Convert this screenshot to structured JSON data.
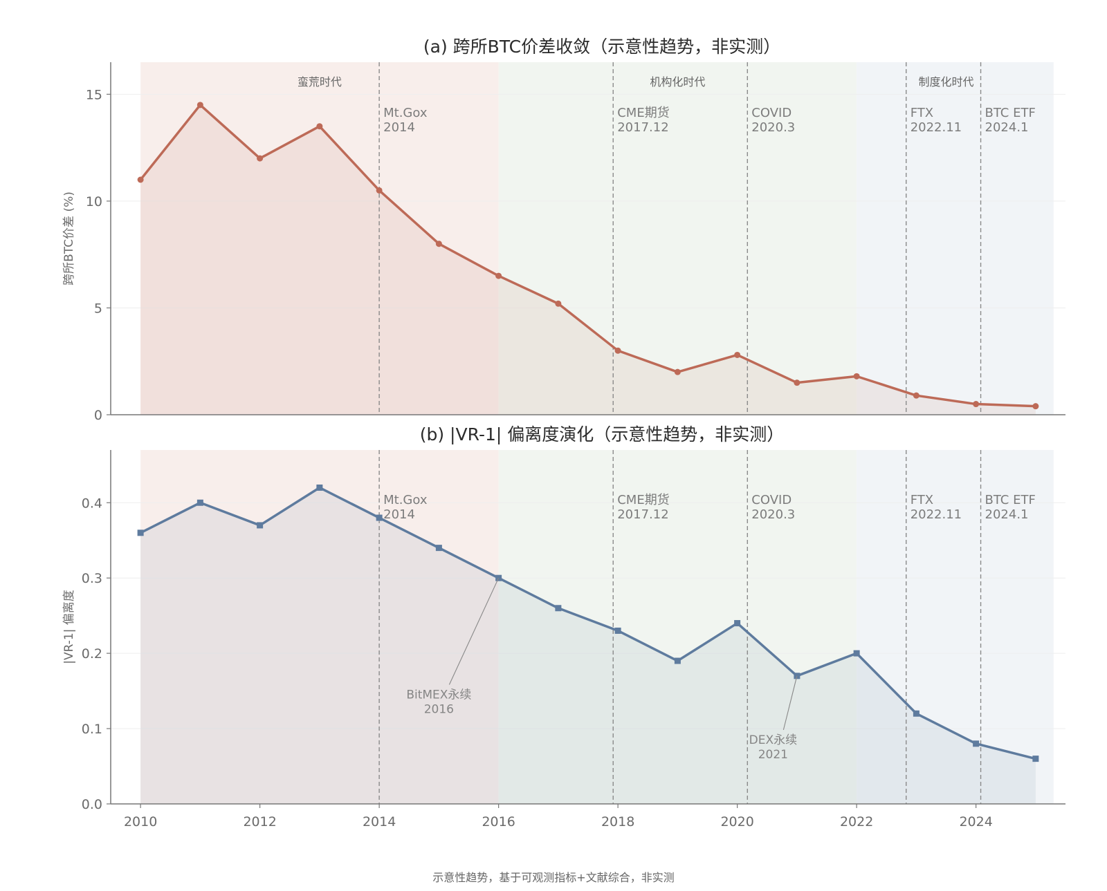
{
  "footnote": "示意性趋势，基于可观测指标+文献综合，非实测",
  "colors": {
    "spread_line": "#bd6a57",
    "vr_line": "#5e7b9e",
    "era1_band": "#f8eeeb",
    "era2_band": "#f1f5f0",
    "era3_band": "#f1f4f7",
    "axis": "#777777",
    "grid": "#eeeeee",
    "event_line": "#8a8a8a"
  },
  "chart_data": [
    {
      "type": "line",
      "title": "(a) 跨所BTC价差收敛（示意性趋势，非实测）",
      "ylabel": "跨所BTC价差 (%)",
      "xlabel": "",
      "xlim": [
        2009.5,
        2025.5
      ],
      "ylim": [
        0,
        16.5
      ],
      "yticks": [
        0,
        5,
        10,
        15
      ],
      "ytick_labels": [
        "0",
        "5",
        "10",
        "15"
      ],
      "grid": true,
      "x": [
        2010,
        2011,
        2012,
        2013,
        2014,
        2015,
        2016,
        2017,
        2018,
        2019,
        2020,
        2021,
        2022,
        2023,
        2024,
        2025
      ],
      "series": [
        {
          "values": [
            11.0,
            14.5,
            12.0,
            13.5,
            10.5,
            8.0,
            6.5,
            5.2,
            3.0,
            2.0,
            2.8,
            1.5,
            1.8,
            0.9,
            0.5,
            0.4
          ]
        }
      ],
      "eras": [
        {
          "label": "蛮荒时代",
          "start": 2010,
          "end": 2016
        },
        {
          "label": "机构化时代",
          "start": 2016,
          "end": 2022
        },
        {
          "label": "制度化时代",
          "start": 2022,
          "end": 2025.3
        }
      ],
      "events": [
        {
          "label": "Mt.Gox",
          "date": "2014",
          "x": 2014.0
        },
        {
          "label": "CME期货",
          "date": "2017.12",
          "x": 2017.92
        },
        {
          "label": "COVID",
          "date": "2020.3",
          "x": 2020.17
        },
        {
          "label": "FTX",
          "date": "2022.11",
          "x": 2022.83
        },
        {
          "label": "BTC ETF",
          "date": "2024.1",
          "x": 2024.08
        }
      ]
    },
    {
      "type": "line",
      "title": "(b) |VR-1| 偏离度演化（示意性趋势，非实测）",
      "ylabel": "|VR-1| 偏离度",
      "xlabel": "",
      "xlim": [
        2009.5,
        2025.5
      ],
      "ylim": [
        0,
        0.47
      ],
      "yticks": [
        0.0,
        0.1,
        0.2,
        0.3,
        0.4
      ],
      "ytick_labels": [
        "0.0",
        "0.1",
        "0.2",
        "0.3",
        "0.4"
      ],
      "xticks": [
        2010,
        2012,
        2014,
        2016,
        2018,
        2020,
        2022,
        2024
      ],
      "xtick_labels": [
        "2010",
        "2012",
        "2014",
        "2016",
        "2018",
        "2020",
        "2022",
        "2024"
      ],
      "grid": true,
      "x": [
        2010,
        2011,
        2012,
        2013,
        2014,
        2015,
        2016,
        2017,
        2018,
        2019,
        2020,
        2021,
        2022,
        2023,
        2024,
        2025
      ],
      "series": [
        {
          "values": [
            0.36,
            0.4,
            0.37,
            0.42,
            0.38,
            0.34,
            0.3,
            0.26,
            0.23,
            0.19,
            0.24,
            0.17,
            0.2,
            0.12,
            0.08,
            0.06
          ]
        }
      ],
      "events": [
        {
          "label": "Mt.Gox",
          "date": "2014",
          "x": 2014.0
        },
        {
          "label": "CME期货",
          "date": "2017.12",
          "x": 2017.92
        },
        {
          "label": "COVID",
          "date": "2020.3",
          "x": 2020.17
        },
        {
          "label": "FTX",
          "date": "2022.11",
          "x": 2022.83
        },
        {
          "label": "BTC ETF",
          "date": "2024.1",
          "x": 2024.08
        }
      ],
      "annotations": [
        {
          "label": "BitMEX永续",
          "date": "2016",
          "x": 2016,
          "y": 0.3,
          "text_x": 2015.0,
          "text_y": 0.14
        },
        {
          "label": "DEX永续",
          "date": "2021",
          "x": 2021,
          "y": 0.17,
          "text_x": 2020.6,
          "text_y": 0.08
        }
      ]
    }
  ]
}
